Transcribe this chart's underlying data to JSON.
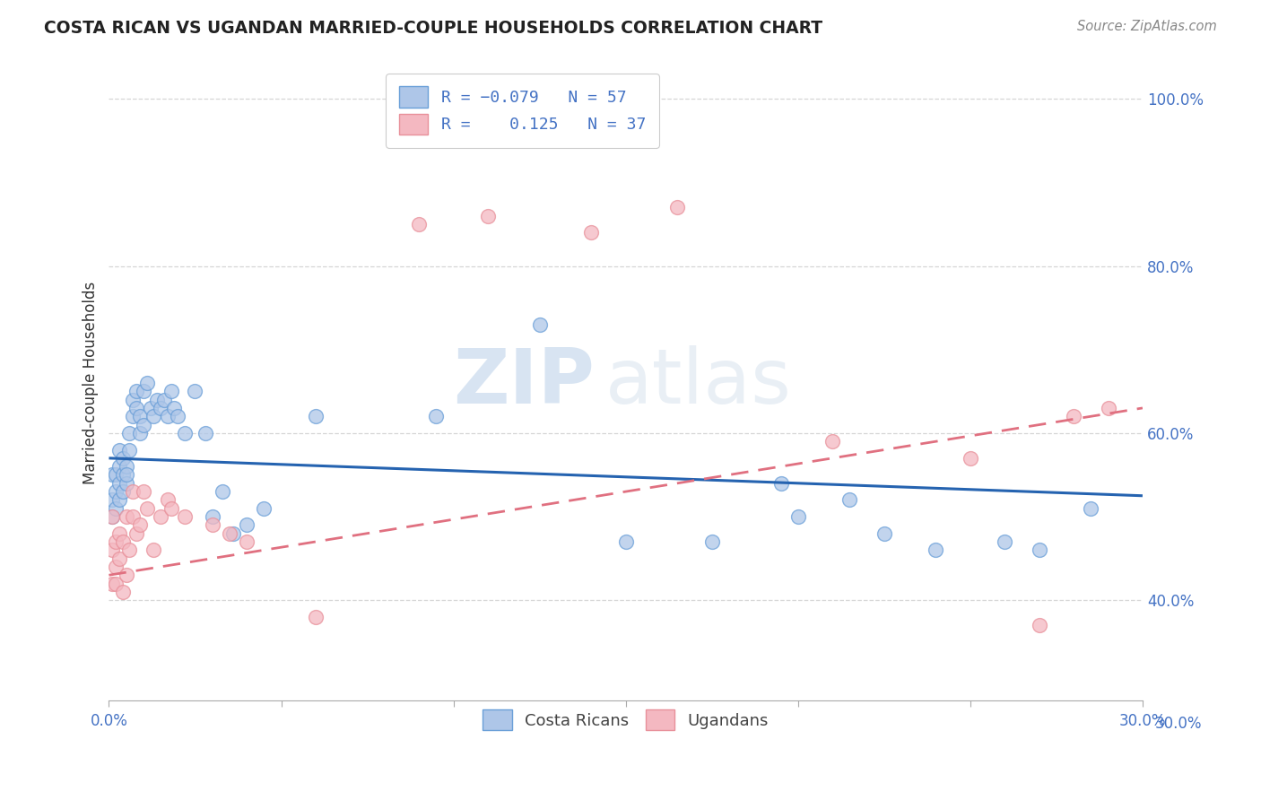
{
  "title": "COSTA RICAN VS UGANDAN MARRIED-COUPLE HOUSEHOLDS CORRELATION CHART",
  "source": "Source: ZipAtlas.com",
  "ylabel": "Married-couple Households",
  "xlim": [
    0.0,
    0.3
  ],
  "ylim": [
    0.28,
    1.04
  ],
  "xtick_values": [
    0.0,
    0.05,
    0.1,
    0.15,
    0.2,
    0.25,
    0.3
  ],
  "xtick_show_labels": [
    true,
    false,
    false,
    false,
    false,
    false,
    true
  ],
  "xtick_labels": [
    "0.0%",
    "",
    "",
    "",
    "",
    "",
    "30.0%"
  ],
  "ytick_values": [
    0.4,
    0.6,
    0.8,
    1.0
  ],
  "ytick_labels": [
    "40.0%",
    "60.0%",
    "80.0%",
    "100.0%"
  ],
  "ytick_right_extra": 0.3,
  "ytick_right_extra_label": "30.0%",
  "costa_ricans_color": "#aec6e8",
  "ugandans_color": "#f4b8c1",
  "costa_ricans_edge_color": "#6a9fd8",
  "ugandans_edge_color": "#e8909a",
  "costa_ricans_line_color": "#2563b0",
  "ugandans_line_color": "#e07080",
  "blue_tick_color": "#4472c4",
  "watermark_zip": "ZIP",
  "watermark_atlas": "atlas",
  "background_color": "#ffffff",
  "cr_line_x0": 0.0,
  "cr_line_y0": 0.57,
  "cr_line_x1": 0.3,
  "cr_line_y1": 0.525,
  "ug_line_x0": 0.0,
  "ug_line_y0": 0.43,
  "ug_line_x1": 0.3,
  "ug_line_y1": 0.63,
  "costa_ricans_x": [
    0.001,
    0.001,
    0.001,
    0.002,
    0.002,
    0.002,
    0.003,
    0.003,
    0.003,
    0.003,
    0.004,
    0.004,
    0.004,
    0.005,
    0.005,
    0.005,
    0.006,
    0.006,
    0.007,
    0.007,
    0.008,
    0.008,
    0.009,
    0.009,
    0.01,
    0.01,
    0.011,
    0.012,
    0.013,
    0.014,
    0.015,
    0.016,
    0.017,
    0.018,
    0.019,
    0.02,
    0.022,
    0.025,
    0.028,
    0.03,
    0.033,
    0.036,
    0.04,
    0.045,
    0.06,
    0.095,
    0.125,
    0.15,
    0.175,
    0.195,
    0.2,
    0.215,
    0.225,
    0.24,
    0.26,
    0.27,
    0.285
  ],
  "costa_ricans_y": [
    0.52,
    0.55,
    0.5,
    0.53,
    0.55,
    0.51,
    0.56,
    0.54,
    0.52,
    0.58,
    0.55,
    0.57,
    0.53,
    0.56,
    0.54,
    0.55,
    0.58,
    0.6,
    0.62,
    0.64,
    0.65,
    0.63,
    0.6,
    0.62,
    0.65,
    0.61,
    0.66,
    0.63,
    0.62,
    0.64,
    0.63,
    0.64,
    0.62,
    0.65,
    0.63,
    0.62,
    0.6,
    0.65,
    0.6,
    0.5,
    0.53,
    0.48,
    0.49,
    0.51,
    0.62,
    0.62,
    0.73,
    0.47,
    0.47,
    0.54,
    0.5,
    0.52,
    0.48,
    0.46,
    0.47,
    0.46,
    0.51
  ],
  "ugandans_x": [
    0.001,
    0.001,
    0.001,
    0.002,
    0.002,
    0.002,
    0.003,
    0.003,
    0.004,
    0.004,
    0.005,
    0.005,
    0.006,
    0.007,
    0.007,
    0.008,
    0.009,
    0.01,
    0.011,
    0.013,
    0.015,
    0.017,
    0.018,
    0.022,
    0.03,
    0.035,
    0.04,
    0.06,
    0.09,
    0.11,
    0.14,
    0.165,
    0.21,
    0.25,
    0.27,
    0.28,
    0.29
  ],
  "ugandans_y": [
    0.42,
    0.46,
    0.5,
    0.44,
    0.47,
    0.42,
    0.45,
    0.48,
    0.41,
    0.47,
    0.5,
    0.43,
    0.46,
    0.5,
    0.53,
    0.48,
    0.49,
    0.53,
    0.51,
    0.46,
    0.5,
    0.52,
    0.51,
    0.5,
    0.49,
    0.48,
    0.47,
    0.38,
    0.85,
    0.86,
    0.84,
    0.87,
    0.59,
    0.57,
    0.37,
    0.62,
    0.63
  ]
}
